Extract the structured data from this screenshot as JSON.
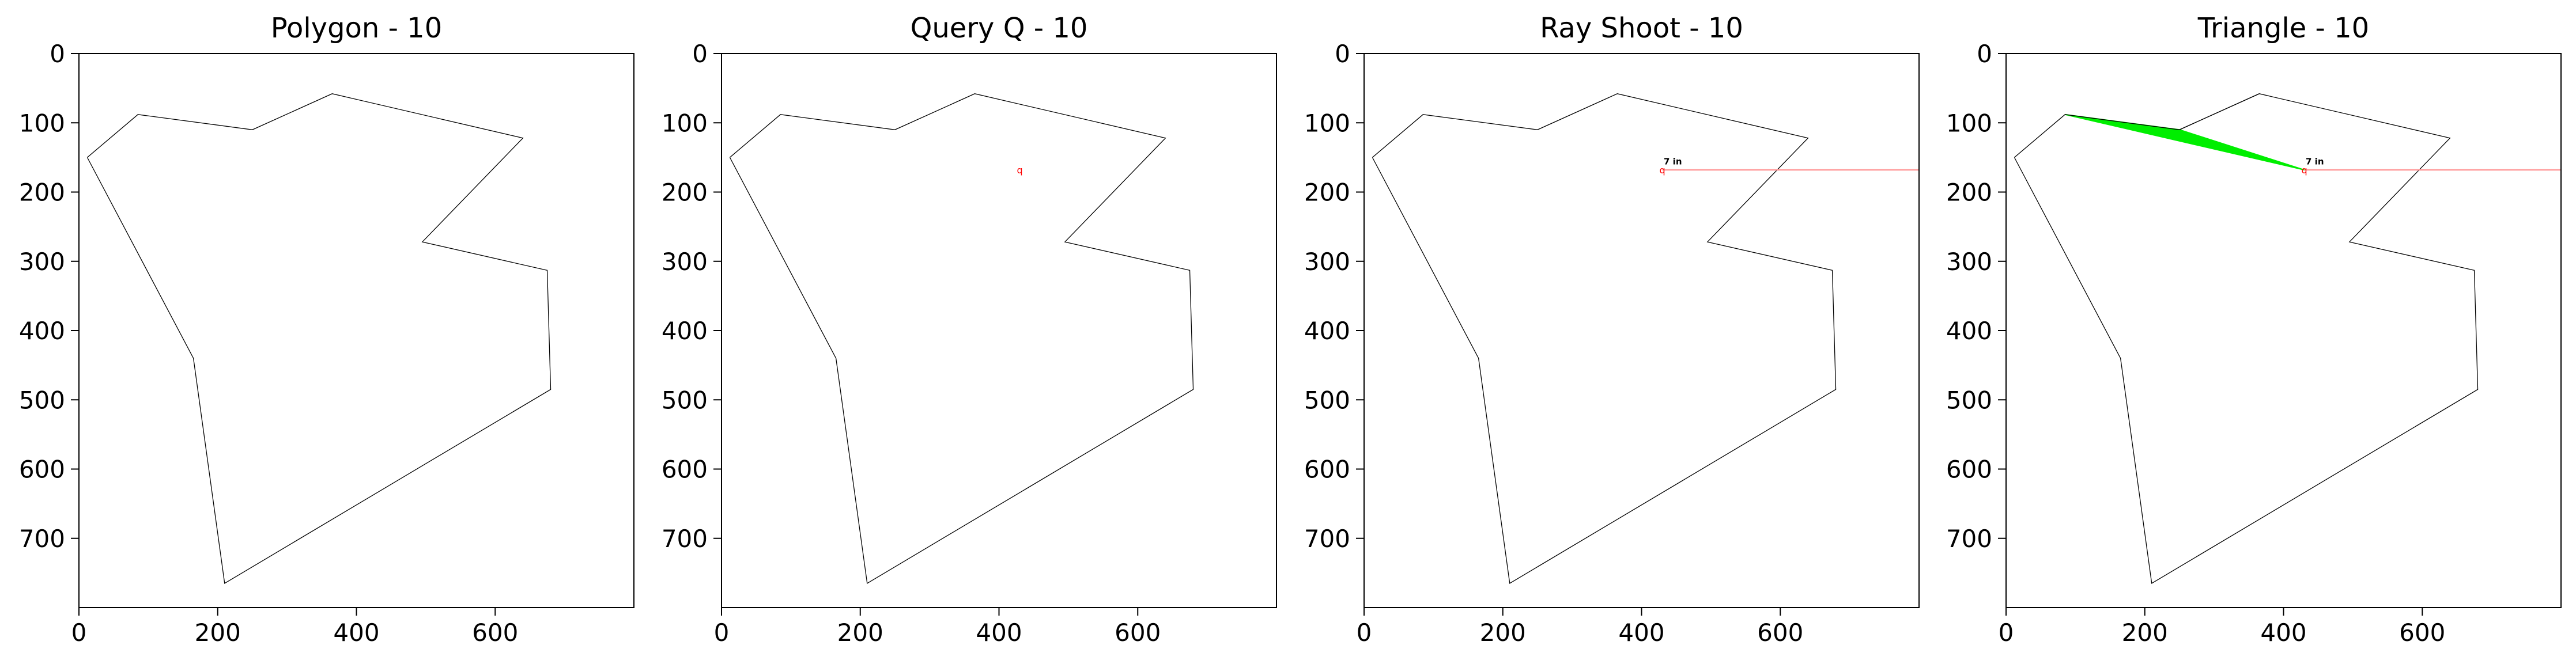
{
  "figure": {
    "background": "#ffffff",
    "panel_count": 4
  },
  "chart_data": [
    {
      "type": "line",
      "title": "Polygon - 10",
      "xlabel": "",
      "ylabel": "",
      "xlim": [
        0,
        800
      ],
      "ylim": [
        800,
        0
      ],
      "y_inverted": true,
      "xticks": [
        0,
        200,
        400,
        600
      ],
      "yticks": [
        0,
        100,
        200,
        300,
        400,
        500,
        600,
        700
      ],
      "grid": false,
      "polygon": {
        "color": "#000000",
        "points": [
          [
            12,
            150
          ],
          [
            85,
            88
          ],
          [
            250,
            110
          ],
          [
            365,
            58
          ],
          [
            640,
            122
          ],
          [
            495,
            272
          ],
          [
            675,
            313
          ],
          [
            680,
            485
          ],
          [
            210,
            765
          ],
          [
            165,
            440
          ],
          [
            12,
            150
          ]
        ]
      }
    },
    {
      "type": "line",
      "title": "Query Q - 10",
      "xlabel": "",
      "ylabel": "",
      "xlim": [
        0,
        800
      ],
      "ylim": [
        800,
        0
      ],
      "y_inverted": true,
      "xticks": [
        0,
        200,
        400,
        600
      ],
      "yticks": [
        0,
        100,
        200,
        300,
        400,
        500,
        600,
        700
      ],
      "grid": false,
      "polygon": {
        "color": "#000000",
        "points": [
          [
            12,
            150
          ],
          [
            85,
            88
          ],
          [
            250,
            110
          ],
          [
            365,
            58
          ],
          [
            640,
            122
          ],
          [
            495,
            272
          ],
          [
            675,
            313
          ],
          [
            680,
            485
          ],
          [
            210,
            765
          ],
          [
            165,
            440
          ],
          [
            12,
            150
          ]
        ]
      },
      "query_point": {
        "x": 430,
        "y": 168,
        "label": "q",
        "color": "#ff0000"
      }
    },
    {
      "type": "line",
      "title": "Ray Shoot - 10",
      "xlabel": "",
      "ylabel": "",
      "xlim": [
        0,
        800
      ],
      "ylim": [
        800,
        0
      ],
      "y_inverted": true,
      "xticks": [
        0,
        200,
        400,
        600
      ],
      "yticks": [
        0,
        100,
        200,
        300,
        400,
        500,
        600,
        700
      ],
      "grid": false,
      "polygon": {
        "color": "#000000",
        "points": [
          [
            12,
            150
          ],
          [
            85,
            88
          ],
          [
            250,
            110
          ],
          [
            365,
            58
          ],
          [
            640,
            122
          ],
          [
            495,
            272
          ],
          [
            675,
            313
          ],
          [
            680,
            485
          ],
          [
            210,
            765
          ],
          [
            165,
            440
          ],
          [
            12,
            150
          ]
        ]
      },
      "query_point": {
        "x": 430,
        "y": 168,
        "label": "q",
        "color": "#ff0000"
      },
      "ray": {
        "from": [
          430,
          168
        ],
        "to": [
          800,
          168
        ],
        "color": "#ff9999"
      },
      "annotation": {
        "text": "7 in",
        "x": 432,
        "y": 160
      }
    },
    {
      "type": "line",
      "title": "Triangle - 10",
      "xlabel": "",
      "ylabel": "",
      "xlim": [
        0,
        800
      ],
      "ylim": [
        800,
        0
      ],
      "y_inverted": true,
      "xticks": [
        0,
        200,
        400,
        600
      ],
      "yticks": [
        0,
        100,
        200,
        300,
        400,
        500,
        600,
        700
      ],
      "grid": false,
      "polygon": {
        "color": "#000000",
        "points": [
          [
            12,
            150
          ],
          [
            85,
            88
          ],
          [
            250,
            110
          ],
          [
            365,
            58
          ],
          [
            640,
            122
          ],
          [
            495,
            272
          ],
          [
            675,
            313
          ],
          [
            680,
            485
          ],
          [
            210,
            765
          ],
          [
            165,
            440
          ],
          [
            12,
            150
          ]
        ]
      },
      "query_point": {
        "x": 430,
        "y": 168,
        "label": "q",
        "color": "#ff0000"
      },
      "ray": {
        "from": [
          430,
          168
        ],
        "to": [
          800,
          168
        ],
        "color": "#ff9999"
      },
      "annotation": {
        "text": "7 in",
        "x": 432,
        "y": 160
      },
      "triangle": {
        "color": "#00ee00",
        "points": [
          [
            85,
            88
          ],
          [
            250,
            110
          ],
          [
            430,
            168
          ]
        ]
      },
      "segment": {
        "from": [
          250,
          110
        ],
        "to": [
          365,
          58
        ],
        "color": "#000000"
      }
    }
  ]
}
